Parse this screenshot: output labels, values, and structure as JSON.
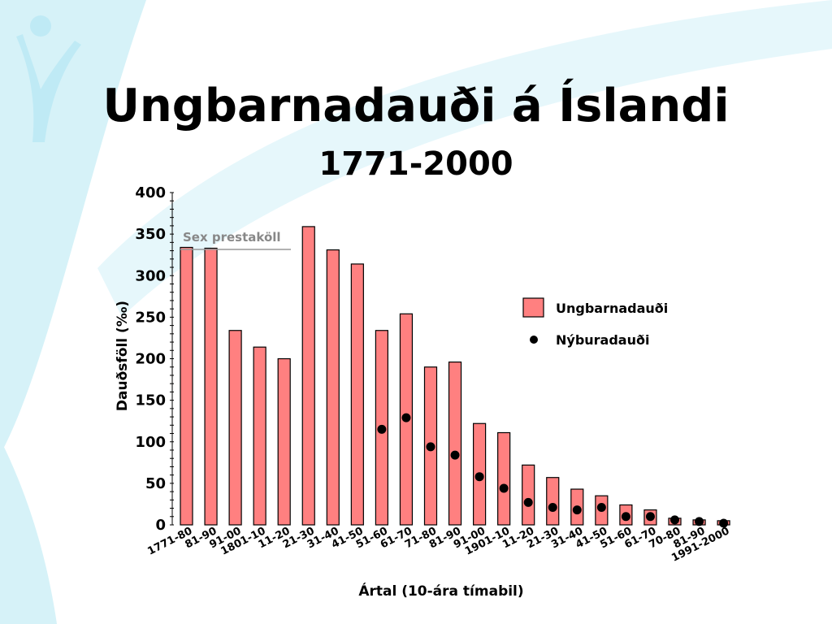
{
  "slide": {
    "title": "Ungbarnadauði á Íslandi",
    "subtitle": "1771-2000"
  },
  "colors": {
    "bar_fill": "#FF8080",
    "bar_stroke": "#000000",
    "background_swoosh": "#D6F2F8",
    "logo": "#BFEAF5"
  },
  "chart_data": {
    "type": "bar",
    "xlabel": "Ártal (10-ára tímabil)",
    "ylabel": "Dauðsföll (‰)",
    "ylim": [
      0,
      400
    ],
    "yticks": [
      0,
      50,
      100,
      150,
      200,
      250,
      300,
      350,
      400
    ],
    "categories": [
      "1771-80",
      "81-90",
      "91-00",
      "1801-10",
      "11-20",
      "21-30",
      "31-40",
      "41-50",
      "51-60",
      "61-70",
      "71-80",
      "81-90",
      "91-00",
      "1901-10",
      "11-20",
      "21-30",
      "31-40",
      "41-50",
      "51-60",
      "61-70",
      "70-80",
      "81-90",
      "1991-2000"
    ],
    "series": [
      {
        "name": "Ungbarnadauði",
        "kind": "bar",
        "values": [
          334,
          333,
          234,
          214,
          200,
          359,
          331,
          314,
          234,
          254,
          190,
          196,
          122,
          111,
          72,
          57,
          43,
          35,
          24,
          18,
          8,
          6,
          5
        ]
      },
      {
        "name": "Nýburadauði",
        "kind": "dot",
        "values": [
          null,
          null,
          null,
          null,
          null,
          null,
          null,
          null,
          115,
          129,
          94,
          84,
          58,
          44,
          27,
          21,
          18,
          21,
          10,
          10,
          6,
          4,
          2
        ]
      }
    ],
    "annotation": {
      "text": "Sex prestaköll",
      "spans_categories": [
        0,
        1
      ]
    },
    "legend_position": "right"
  }
}
